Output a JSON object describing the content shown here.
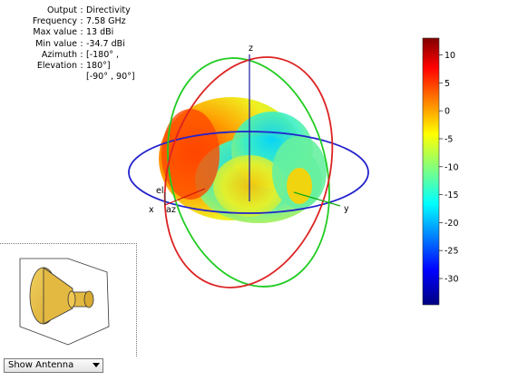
{
  "info": [
    {
      "key": "Output",
      "value": "Directivity"
    },
    {
      "key": "Frequency",
      "value": "7.58 GHz"
    },
    {
      "key": "Max value",
      "value": "13 dBi"
    },
    {
      "key": "Min value",
      "value": "-34.7 dBi"
    },
    {
      "key": "Azimuth",
      "value": "[-180° ,"
    },
    {
      "key": "Elevation",
      "value": "180°]"
    },
    {
      "key": "",
      "value": "[-90° , 90°]"
    }
  ],
  "axes": {
    "x": "x",
    "y": "y",
    "z": "z",
    "el": "el",
    "az": "az"
  },
  "colors": {
    "x_circle": "#2222cc",
    "y_circle": "#22cc22",
    "z_circle": "#dd2222",
    "axis": "#1a1aa0"
  },
  "chart_data": {
    "type": "heatmap",
    "quantity": "Directivity",
    "unit": "dBi",
    "frequency": "7.58 GHz",
    "max_value": 13,
    "min_value": -34.7,
    "colorbar": {
      "ticks": [
        10,
        5,
        0,
        -5,
        -10,
        -15,
        -20,
        -25,
        -30
      ],
      "range": [
        -34.7,
        13
      ],
      "colormap": "jet"
    }
  },
  "controls": {
    "dropdown_label": "Show Antenna"
  }
}
